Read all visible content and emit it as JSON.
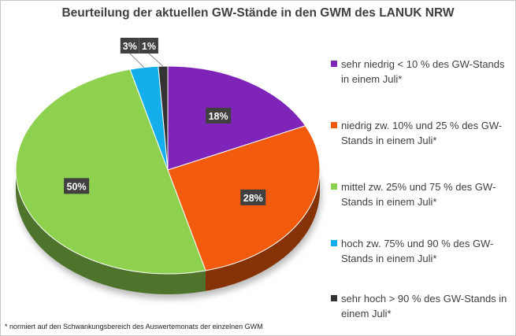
{
  "chart_data": {
    "type": "pie",
    "title": "Beurteilung der aktuellen GW-Stände in den GWM des LANUK NRW",
    "slices": [
      {
        "label": "sehr niedrig < 10 % des GW-Stands in einem Juli*",
        "value": 18,
        "value_label": "18%",
        "color": "#7f24b8"
      },
      {
        "label": "niedrig zw. 10% und 25 % des GW-Stands in einem Juli*",
        "value": 28,
        "value_label": "28%",
        "color": "#f25a0d"
      },
      {
        "label": "mittel zw. 25% und 75 % des GW-Stands in einem Juli*",
        "value": 50,
        "value_label": "50%",
        "color": "#8ed14e"
      },
      {
        "label": "hoch zw. 75% und 90 % des GW-Stands in einem Juli*",
        "value": 3,
        "value_label": "3%",
        "color": "#14aeea"
      },
      {
        "label": "sehr hoch > 90 % des GW-Stands in einem Juli*",
        "value": 1,
        "value_label": "1%",
        "color": "#333333"
      }
    ],
    "legend_position": "right"
  },
  "footnote": "* normiert auf den Schwankungsbereich des Auswertemonats der einzelnen GWM"
}
